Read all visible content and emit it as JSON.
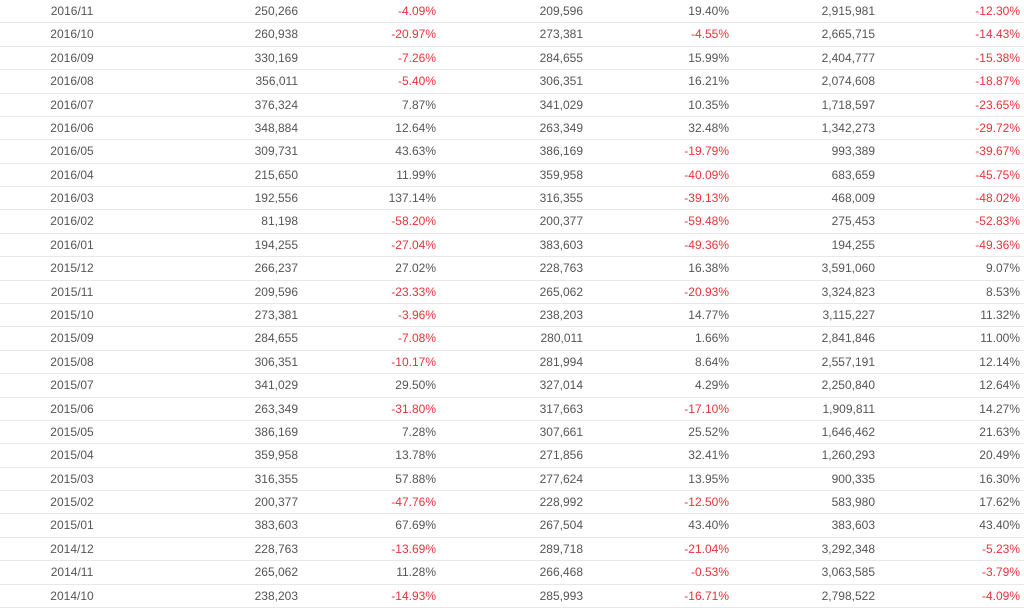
{
  "table": {
    "rows": [
      [
        "2016/11",
        "250,266",
        "-4.09%",
        "209,596",
        "19.40%",
        "2,915,981",
        "-12.30%"
      ],
      [
        "2016/10",
        "260,938",
        "-20.97%",
        "273,381",
        "-4.55%",
        "2,665,715",
        "-14.43%"
      ],
      [
        "2016/09",
        "330,169",
        "-7.26%",
        "284,655",
        "15.99%",
        "2,404,777",
        "-15.38%"
      ],
      [
        "2016/08",
        "356,011",
        "-5.40%",
        "306,351",
        "16.21%",
        "2,074,608",
        "-18.87%"
      ],
      [
        "2016/07",
        "376,324",
        "7.87%",
        "341,029",
        "10.35%",
        "1,718,597",
        "-23.65%"
      ],
      [
        "2016/06",
        "348,884",
        "12.64%",
        "263,349",
        "32.48%",
        "1,342,273",
        "-29.72%"
      ],
      [
        "2016/05",
        "309,731",
        "43.63%",
        "386,169",
        "-19.79%",
        "993,389",
        "-39.67%"
      ],
      [
        "2016/04",
        "215,650",
        "11.99%",
        "359,958",
        "-40.09%",
        "683,659",
        "-45.75%"
      ],
      [
        "2016/03",
        "192,556",
        "137.14%",
        "316,355",
        "-39.13%",
        "468,009",
        "-48.02%"
      ],
      [
        "2016/02",
        "81,198",
        "-58.20%",
        "200,377",
        "-59.48%",
        "275,453",
        "-52.83%"
      ],
      [
        "2016/01",
        "194,255",
        "-27.04%",
        "383,603",
        "-49.36%",
        "194,255",
        "-49.36%"
      ],
      [
        "2015/12",
        "266,237",
        "27.02%",
        "228,763",
        "16.38%",
        "3,591,060",
        "9.07%"
      ],
      [
        "2015/11",
        "209,596",
        "-23.33%",
        "265,062",
        "-20.93%",
        "3,324,823",
        "8.53%"
      ],
      [
        "2015/10",
        "273,381",
        "-3.96%",
        "238,203",
        "14.77%",
        "3,115,227",
        "11.32%"
      ],
      [
        "2015/09",
        "284,655",
        "-7.08%",
        "280,011",
        "1.66%",
        "2,841,846",
        "11.00%"
      ],
      [
        "2015/08",
        "306,351",
        "-10.17%",
        "281,994",
        "8.64%",
        "2,557,191",
        "12.14%"
      ],
      [
        "2015/07",
        "341,029",
        "29.50%",
        "327,014",
        "4.29%",
        "2,250,840",
        "12.64%"
      ],
      [
        "2015/06",
        "263,349",
        "-31.80%",
        "317,663",
        "-17.10%",
        "1,909,811",
        "14.27%"
      ],
      [
        "2015/05",
        "386,169",
        "7.28%",
        "307,661",
        "25.52%",
        "1,646,462",
        "21.63%"
      ],
      [
        "2015/04",
        "359,958",
        "13.78%",
        "271,856",
        "32.41%",
        "1,260,293",
        "20.49%"
      ],
      [
        "2015/03",
        "316,355",
        "57.88%",
        "277,624",
        "13.95%",
        "900,335",
        "16.30%"
      ],
      [
        "2015/02",
        "200,377",
        "-47.76%",
        "228,992",
        "-12.50%",
        "583,980",
        "17.62%"
      ],
      [
        "2015/01",
        "383,603",
        "67.69%",
        "267,504",
        "43.40%",
        "383,603",
        "43.40%"
      ],
      [
        "2014/12",
        "228,763",
        "-13.69%",
        "289,718",
        "-21.04%",
        "3,292,348",
        "-5.23%"
      ],
      [
        "2014/11",
        "265,062",
        "11.28%",
        "266,468",
        "-0.53%",
        "3,063,585",
        "-3.79%"
      ],
      [
        "2014/10",
        "238,203",
        "-14.93%",
        "285,993",
        "-16.71%",
        "2,798,522",
        "-4.09%"
      ]
    ]
  }
}
